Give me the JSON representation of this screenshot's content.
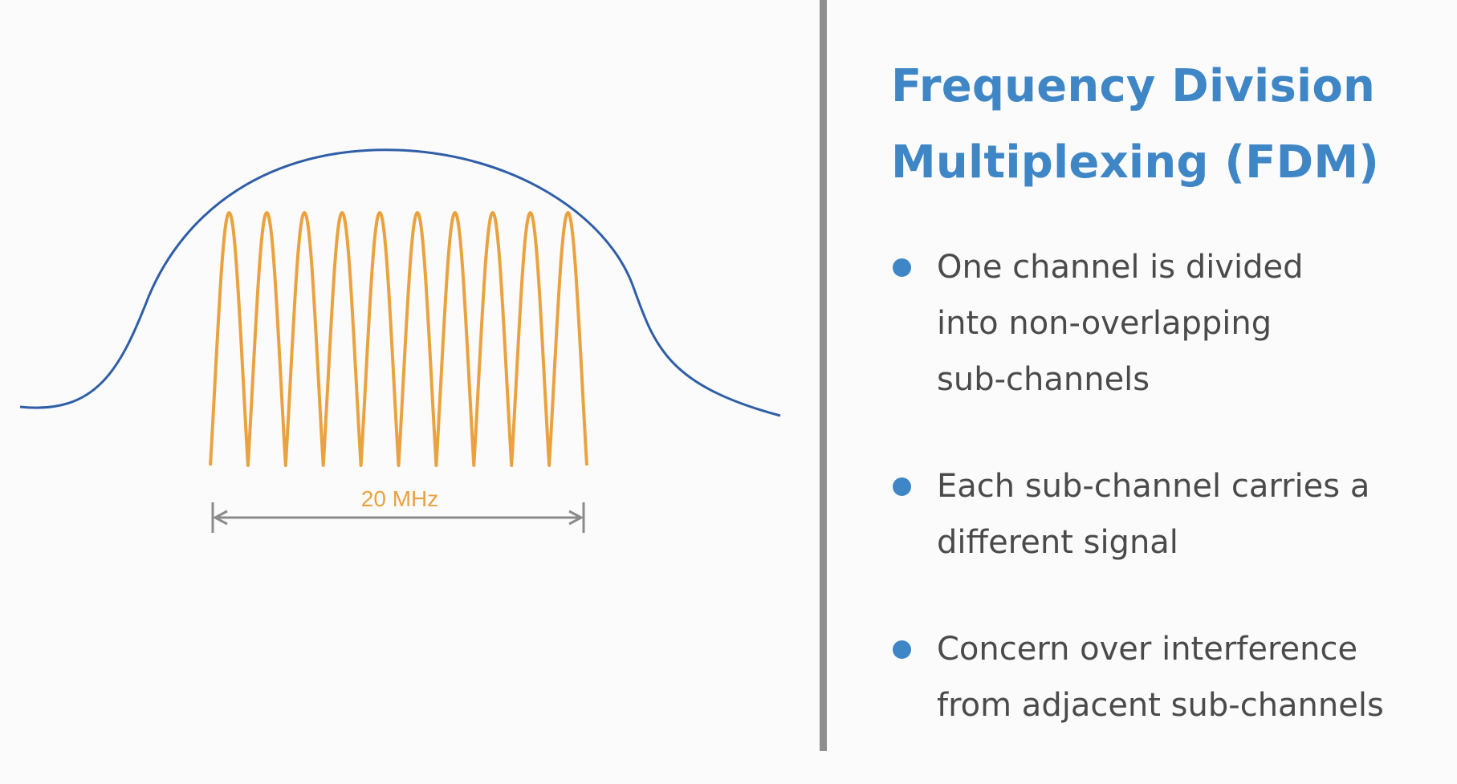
{
  "title": "Frequency Division\nMultiplexing (FDM)",
  "bullets": [
    {
      "text": "One channel is divided\ninto non-overlapping\nsub-channels"
    },
    {
      "text": "Each sub-channel carries a\ndifferent signal"
    },
    {
      "text": "Concern over interference\nfrom adjacent sub-channels"
    }
  ],
  "diagram": {
    "bandwidth_label": "20 MHz",
    "subchannel_count": 10,
    "colors": {
      "envelope": "#2f5ea8",
      "subchannels": "#eaa23f",
      "bandwidth_label": "#eaa23f",
      "dimension_arrow": "#8b8b8b",
      "accent": "#3f86c6"
    }
  }
}
